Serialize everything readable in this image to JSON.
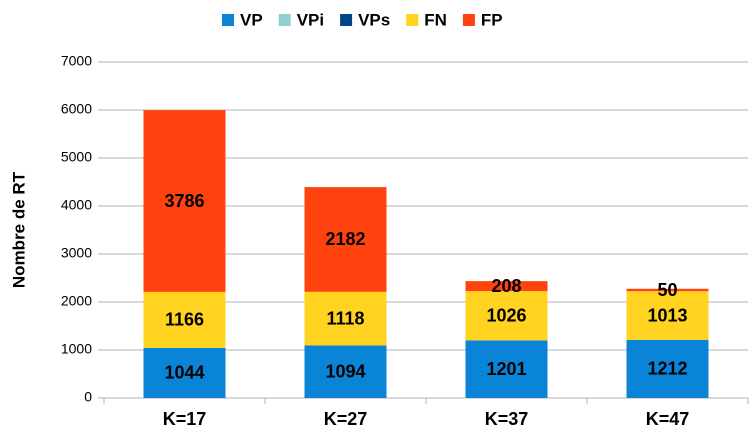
{
  "chart_data": {
    "type": "stacked_bar",
    "categories": [
      "K=17",
      "K=27",
      "K=37",
      "K=47"
    ],
    "y_label": "Nombre de RT",
    "series": [
      {
        "name": "VP",
        "color": "#0a84d6",
        "values": [
          1044,
          1094,
          1201,
          1212
        ]
      },
      {
        "name": "VPi",
        "color": "#8fcfd2",
        "values": [
          0,
          0,
          0,
          0
        ]
      },
      {
        "name": "VPs",
        "color": "#004586",
        "values": [
          0,
          0,
          0,
          0
        ]
      },
      {
        "name": "FN",
        "color": "#ffd320",
        "values": [
          1166,
          1118,
          1026,
          1013
        ]
      },
      {
        "name": "FP",
        "color": "#ff420e",
        "values": [
          3786,
          2182,
          208,
          50
        ]
      }
    ],
    "labeled_series": [
      "VP",
      "FN",
      "FP"
    ],
    "ylim": [
      0,
      7000
    ],
    "yticks": [
      0,
      1000,
      2000,
      3000,
      4000,
      5000,
      6000,
      7000
    ],
    "grid": true,
    "legend": "top"
  }
}
